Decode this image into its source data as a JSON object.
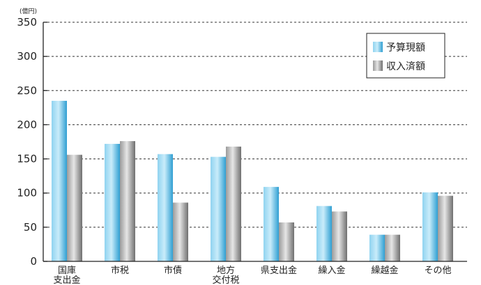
{
  "chart_data": {
    "type": "bar",
    "unit": "(億円)",
    "categories": [
      [
        "国庫",
        "支出金"
      ],
      [
        "市税"
      ],
      [
        "市債"
      ],
      [
        "地方",
        "交付税"
      ],
      [
        "県支出金"
      ],
      [
        "繰入金"
      ],
      [
        "繰越金"
      ],
      [
        "その他"
      ]
    ],
    "series": [
      {
        "name": "予算現額",
        "color": "#5bb8df",
        "values": [
          235,
          172,
          157,
          153,
          109,
          81,
          39,
          101
        ]
      },
      {
        "name": "収入済額",
        "color": "#a7a7a7",
        "values": [
          156,
          176,
          86,
          168,
          57,
          73,
          39,
          96
        ]
      }
    ],
    "ylim": [
      0,
      350
    ],
    "yticks": [
      0,
      50,
      100,
      150,
      200,
      250,
      300,
      350
    ],
    "grid": true,
    "legend_position": "top-right"
  }
}
